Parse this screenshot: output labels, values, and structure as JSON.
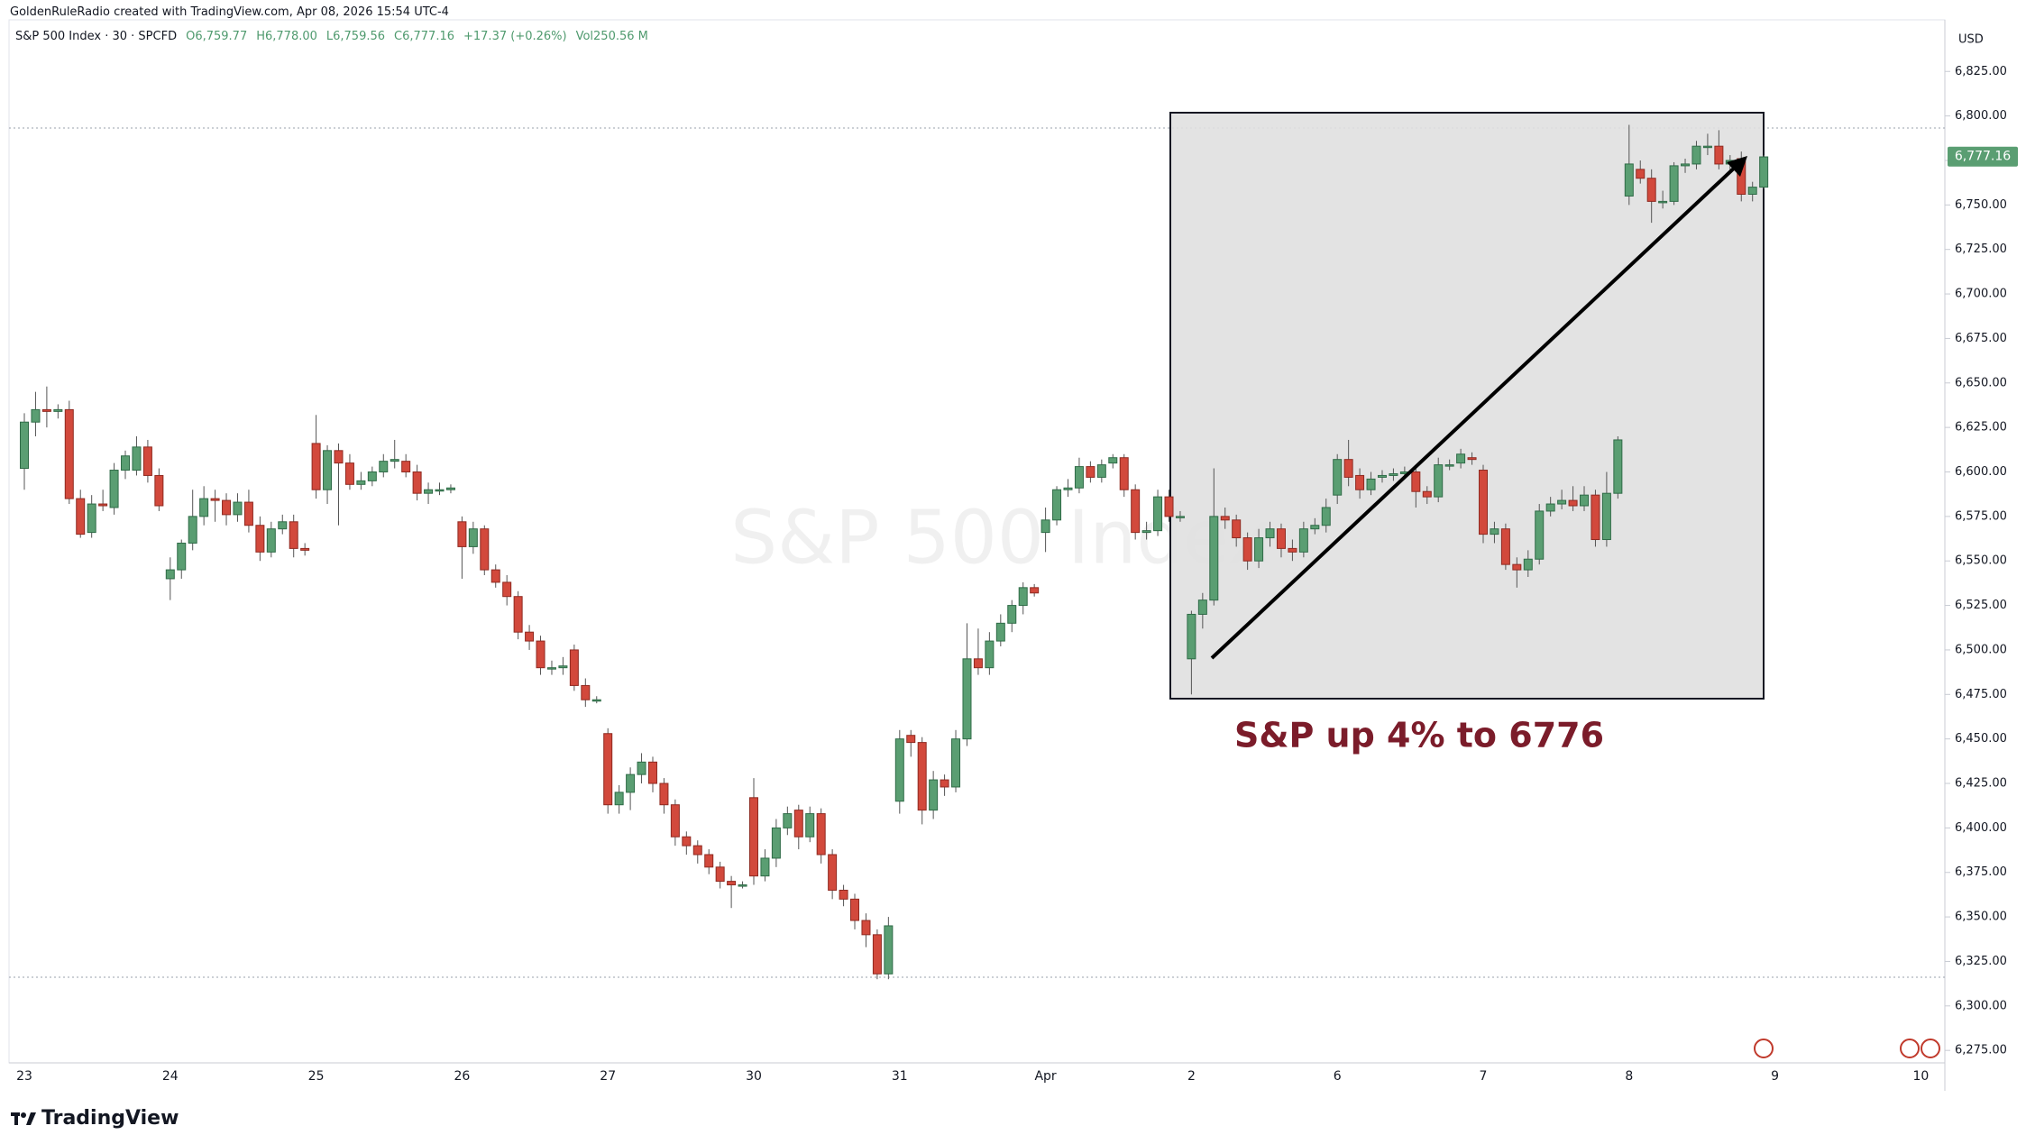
{
  "header": {
    "credit": "GoldenRuleRadio created with TradingView.com, Apr 08, 2026 15:54 UTC-4",
    "legend": {
      "symbol": "S&P 500 Index · 30 · SPCFD",
      "open": "O6,759.77",
      "high": "H6,778.00",
      "low": "L6,759.56",
      "close": "C6,777.16",
      "change": "+17.37 (+0.26%)",
      "volume": "Vol250.56 M"
    }
  },
  "footer": {
    "logo": "TradingView"
  },
  "chart_data": {
    "type": "candlestick",
    "watermark": "S&P 500 Index",
    "currency": "USD",
    "annotation": "S&P up 4% to 6776",
    "up_color": "#5a9e72",
    "down_color": "#d2493c",
    "ylim": [
      6268,
      6854
    ],
    "yticks": [
      {
        "value": 6275,
        "label": "6,275.00"
      },
      {
        "value": 6300,
        "label": "6,300.00"
      },
      {
        "value": 6325,
        "label": "6,325.00"
      },
      {
        "value": 6350,
        "label": "6,350.00"
      },
      {
        "value": 6375,
        "label": "6,375.00"
      },
      {
        "value": 6400,
        "label": "6,400.00"
      },
      {
        "value": 6425,
        "label": "6,425.00"
      },
      {
        "value": 6450,
        "label": "6,450.00"
      },
      {
        "value": 6475,
        "label": "6,475.00"
      },
      {
        "value": 6500,
        "label": "6,500.00"
      },
      {
        "value": 6525,
        "label": "6,525.00"
      },
      {
        "value": 6550,
        "label": "6,550.00"
      },
      {
        "value": 6575,
        "label": "6,575.00"
      },
      {
        "value": 6600,
        "label": "6,600.00"
      },
      {
        "value": 6625,
        "label": "6,625.00"
      },
      {
        "value": 6650,
        "label": "6,650.00"
      },
      {
        "value": 6675,
        "label": "6,675.00"
      },
      {
        "value": 6700,
        "label": "6,700.00"
      },
      {
        "value": 6725,
        "label": "6,725.00"
      },
      {
        "value": 6750,
        "label": "6,750.00"
      },
      {
        "value": 6775,
        "label": "6,775.00"
      },
      {
        "value": 6800,
        "label": "6,800.00"
      },
      {
        "value": 6825,
        "label": "6,825.00"
      }
    ],
    "last_price": {
      "value": 6777.16,
      "label": "6,777.16"
    },
    "days": [
      "23",
      "24",
      "25",
      "26",
      "27",
      "30",
      "31",
      "Apr",
      "2",
      "6",
      "7",
      "8",
      "9",
      "10"
    ],
    "candles": [
      [
        6602,
        6633,
        6590,
        6628
      ],
      [
        6628,
        6645,
        6620,
        6635
      ],
      [
        6635,
        6648,
        6625,
        6634
      ],
      [
        6634,
        6638,
        6630,
        6635
      ],
      [
        6635,
        6640,
        6582,
        6585
      ],
      [
        6585,
        6590,
        6563,
        6565
      ],
      [
        6566,
        6587,
        6563,
        6582
      ],
      [
        6582,
        6590,
        6578,
        6581
      ],
      [
        6580,
        6605,
        6576,
        6601
      ],
      [
        6601,
        6612,
        6596,
        6609
      ],
      [
        6601,
        6620,
        6598,
        6614
      ],
      [
        6614,
        6618,
        6594,
        6598
      ],
      [
        6598,
        6602,
        6578,
        6581
      ],
      [
        6540,
        6552,
        6528,
        6545
      ],
      [
        6545,
        6562,
        6540,
        6560
      ],
      [
        6560,
        6590,
        6556,
        6575
      ],
      [
        6575,
        6592,
        6570,
        6585
      ],
      [
        6585,
        6590,
        6572,
        6584
      ],
      [
        6584,
        6588,
        6570,
        6576
      ],
      [
        6576,
        6588,
        6572,
        6583
      ],
      [
        6583,
        6590,
        6566,
        6570
      ],
      [
        6570,
        6575,
        6550,
        6555
      ],
      [
        6555,
        6572,
        6552,
        6568
      ],
      [
        6568,
        6576,
        6565,
        6572
      ],
      [
        6572,
        6576,
        6552,
        6557
      ],
      [
        6557,
        6560,
        6553,
        6556
      ],
      [
        6616,
        6632,
        6585,
        6590
      ],
      [
        6590,
        6615,
        6582,
        6612
      ],
      [
        6612,
        6616,
        6570,
        6605
      ],
      [
        6605,
        6610,
        6590,
        6593
      ],
      [
        6593,
        6600,
        6590,
        6595
      ],
      [
        6595,
        6603,
        6592,
        6600
      ],
      [
        6600,
        6610,
        6597,
        6606
      ],
      [
        6606,
        6618,
        6602,
        6607
      ],
      [
        6606,
        6610,
        6597,
        6600
      ],
      [
        6600,
        6604,
        6584,
        6588
      ],
      [
        6588,
        6594,
        6582,
        6590
      ],
      [
        6590,
        6594,
        6587,
        6590
      ],
      [
        6590,
        6593,
        6588,
        6591
      ],
      [
        6572,
        6575,
        6540,
        6558
      ],
      [
        6558,
        6572,
        6554,
        6568
      ],
      [
        6568,
        6570,
        6542,
        6545
      ],
      [
        6545,
        6548,
        6535,
        6538
      ],
      [
        6538,
        6542,
        6525,
        6530
      ],
      [
        6530,
        6533,
        6506,
        6510
      ],
      [
        6510,
        6514,
        6500,
        6505
      ],
      [
        6505,
        6508,
        6486,
        6490
      ],
      [
        6490,
        6494,
        6486,
        6490
      ],
      [
        6490,
        6496,
        6486,
        6491
      ],
      [
        6500,
        6503,
        6477,
        6480
      ],
      [
        6480,
        6484,
        6468,
        6472
      ],
      [
        6472,
        6474,
        6470,
        6472
      ],
      [
        6453,
        6456,
        6408,
        6413
      ],
      [
        6413,
        6424,
        6408,
        6420
      ],
      [
        6420,
        6434,
        6410,
        6430
      ],
      [
        6430,
        6442,
        6425,
        6437
      ],
      [
        6437,
        6440,
        6420,
        6425
      ],
      [
        6425,
        6428,
        6408,
        6413
      ],
      [
        6413,
        6416,
        6390,
        6395
      ],
      [
        6395,
        6398,
        6385,
        6390
      ],
      [
        6390,
        6393,
        6380,
        6385
      ],
      [
        6385,
        6388,
        6374,
        6378
      ],
      [
        6378,
        6381,
        6366,
        6370
      ],
      [
        6370,
        6373,
        6355,
        6368
      ],
      [
        6368,
        6370,
        6366,
        6368
      ],
      [
        6417,
        6428,
        6368,
        6373
      ],
      [
        6373,
        6388,
        6370,
        6383
      ],
      [
        6383,
        6405,
        6378,
        6400
      ],
      [
        6400,
        6412,
        6396,
        6408
      ],
      [
        6410,
        6413,
        6388,
        6395
      ],
      [
        6395,
        6412,
        6392,
        6408
      ],
      [
        6408,
        6411,
        6380,
        6385
      ],
      [
        6385,
        6388,
        6360,
        6365
      ],
      [
        6365,
        6368,
        6356,
        6360
      ],
      [
        6360,
        6363,
        6343,
        6348
      ],
      [
        6348,
        6352,
        6333,
        6340
      ],
      [
        6340,
        6343,
        6315,
        6318
      ],
      [
        6318,
        6350,
        6315,
        6345
      ],
      [
        6415,
        6455,
        6408,
        6450
      ],
      [
        6452,
        6455,
        6440,
        6448
      ],
      [
        6448,
        6451,
        6402,
        6410
      ],
      [
        6410,
        6432,
        6405,
        6427
      ],
      [
        6427,
        6430,
        6418,
        6423
      ],
      [
        6423,
        6455,
        6420,
        6450
      ],
      [
        6450,
        6515,
        6446,
        6495
      ],
      [
        6495,
        6512,
        6486,
        6490
      ],
      [
        6490,
        6510,
        6486,
        6505
      ],
      [
        6505,
        6520,
        6502,
        6515
      ],
      [
        6515,
        6528,
        6510,
        6525
      ],
      [
        6525,
        6538,
        6520,
        6535
      ],
      [
        6535,
        6537,
        6530,
        6532
      ],
      [
        6566,
        6580,
        6555,
        6573
      ],
      [
        6573,
        6592,
        6570,
        6590
      ],
      [
        6590,
        6596,
        6586,
        6591
      ],
      [
        6591,
        6608,
        6588,
        6603
      ],
      [
        6603,
        6606,
        6594,
        6597
      ],
      [
        6597,
        6607,
        6594,
        6604
      ],
      [
        6605,
        6610,
        6602,
        6608
      ],
      [
        6608,
        6610,
        6586,
        6590
      ],
      [
        6590,
        6593,
        6562,
        6566
      ],
      [
        6566,
        6572,
        6562,
        6567
      ],
      [
        6567,
        6590,
        6564,
        6586
      ],
      [
        6586,
        6590,
        6572,
        6575
      ],
      [
        6575,
        6578,
        6572,
        6575
      ],
      [
        6495,
        6522,
        6475,
        6520
      ],
      [
        6520,
        6532,
        6512,
        6528
      ],
      [
        6528,
        6602,
        6525,
        6575
      ],
      [
        6575,
        6580,
        6568,
        6573
      ],
      [
        6573,
        6576,
        6558,
        6563
      ],
      [
        6563,
        6566,
        6545,
        6550
      ],
      [
        6550,
        6568,
        6546,
        6563
      ],
      [
        6563,
        6572,
        6558,
        6568
      ],
      [
        6568,
        6571,
        6552,
        6557
      ],
      [
        6557,
        6562,
        6550,
        6555
      ],
      [
        6555,
        6572,
        6552,
        6568
      ],
      [
        6568,
        6574,
        6565,
        6570
      ],
      [
        6570,
        6585,
        6566,
        6580
      ],
      [
        6587,
        6610,
        6582,
        6607
      ],
      [
        6607,
        6618,
        6592,
        6597
      ],
      [
        6598,
        6602,
        6585,
        6590
      ],
      [
        6590,
        6600,
        6587,
        6596
      ],
      [
        6597,
        6601,
        6594,
        6598
      ],
      [
        6598,
        6602,
        6595,
        6599
      ],
      [
        6599,
        6603,
        6596,
        6600
      ],
      [
        6600,
        6603,
        6580,
        6589
      ],
      [
        6589,
        6592,
        6582,
        6586
      ],
      [
        6586,
        6608,
        6583,
        6604
      ],
      [
        6604,
        6607,
        6601,
        6604
      ],
      [
        6605,
        6613,
        6602,
        6610
      ],
      [
        6608,
        6611,
        6604,
        6607
      ],
      [
        6601,
        6604,
        6560,
        6565
      ],
      [
        6565,
        6572,
        6560,
        6568
      ],
      [
        6568,
        6571,
        6545,
        6548
      ],
      [
        6548,
        6552,
        6535,
        6545
      ],
      [
        6545,
        6556,
        6541,
        6551
      ],
      [
        6551,
        6582,
        6548,
        6578
      ],
      [
        6578,
        6586,
        6575,
        6582
      ],
      [
        6582,
        6590,
        6579,
        6584
      ],
      [
        6584,
        6592,
        6578,
        6581
      ],
      [
        6581,
        6592,
        6578,
        6587
      ],
      [
        6587,
        6590,
        6558,
        6562
      ],
      [
        6562,
        6600,
        6558,
        6588
      ],
      [
        6588,
        6620,
        6585,
        6618
      ],
      [
        6755,
        6795,
        6750,
        6773
      ],
      [
        6770,
        6775,
        6762,
        6765
      ],
      [
        6765,
        6770,
        6740,
        6752
      ],
      [
        6752,
        6758,
        6748,
        6752
      ],
      [
        6752,
        6774,
        6750,
        6772
      ],
      [
        6772,
        6776,
        6768,
        6773
      ],
      [
        6773,
        6786,
        6770,
        6783
      ],
      [
        6783,
        6790,
        6778,
        6783
      ],
      [
        6783,
        6792,
        6770,
        6773
      ],
      [
        6773,
        6778,
        6768,
        6775
      ],
      [
        6776,
        6780,
        6752,
        6756
      ],
      [
        6756,
        6763,
        6752,
        6760
      ],
      [
        6760,
        6778,
        6759,
        6777
      ]
    ]
  }
}
